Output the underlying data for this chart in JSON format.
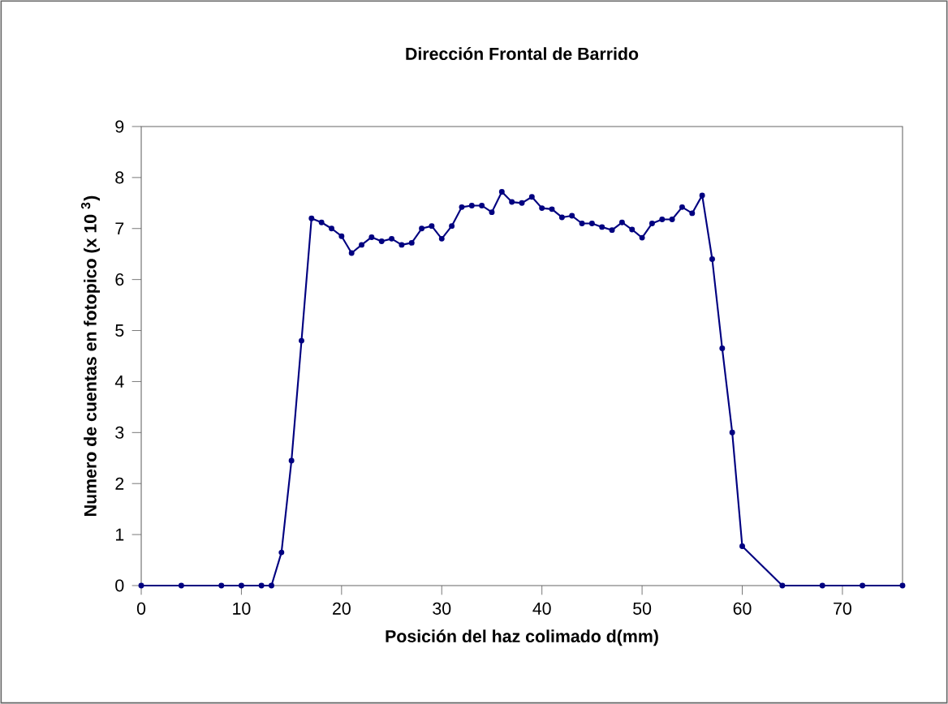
{
  "chart_data": {
    "type": "line",
    "title": "Dirección Frontal de Barrido",
    "xlabel": "Posición del haz colimado d(mm)",
    "ylabel": "Numero de cuentas en fotopico (x 10 $^{3}$)",
    "x": [
      0,
      4,
      8,
      10,
      12,
      13,
      14,
      15,
      16,
      17,
      18,
      19,
      20,
      21,
      22,
      23,
      24,
      25,
      26,
      27,
      28,
      29,
      30,
      31,
      32,
      33,
      34,
      35,
      36,
      37,
      38,
      39,
      40,
      41,
      42,
      43,
      44,
      45,
      46,
      47,
      48,
      49,
      50,
      51,
      52,
      53,
      54,
      55,
      56,
      57,
      58,
      59,
      60,
      64,
      68,
      72,
      76
    ],
    "series": [
      {
        "color": "#000080",
        "values": [
          0,
          0,
          0,
          0,
          0,
          0,
          0.65,
          2.45,
          4.8,
          7.2,
          7.12,
          7.0,
          6.85,
          6.52,
          6.68,
          6.83,
          6.75,
          6.8,
          6.68,
          6.72,
          7.0,
          7.05,
          6.8,
          7.05,
          7.42,
          7.45,
          7.45,
          7.32,
          7.72,
          7.52,
          7.5,
          7.62,
          7.4,
          7.38,
          7.22,
          7.25,
          7.1,
          7.1,
          7.03,
          6.97,
          7.12,
          6.98,
          6.82,
          7.1,
          7.18,
          7.18,
          7.42,
          7.3,
          7.65,
          6.4,
          4.65,
          3.0,
          0.77,
          0,
          0,
          0,
          0
        ]
      }
    ],
    "xlim": [
      0,
      76
    ],
    "ylim": [
      0,
      9
    ],
    "xticks": [
      0,
      10,
      20,
      30,
      40,
      50,
      60,
      70
    ],
    "yticks": [
      0,
      1,
      2,
      3,
      4,
      5,
      6,
      7,
      8,
      9
    ],
    "marker": "circle"
  }
}
